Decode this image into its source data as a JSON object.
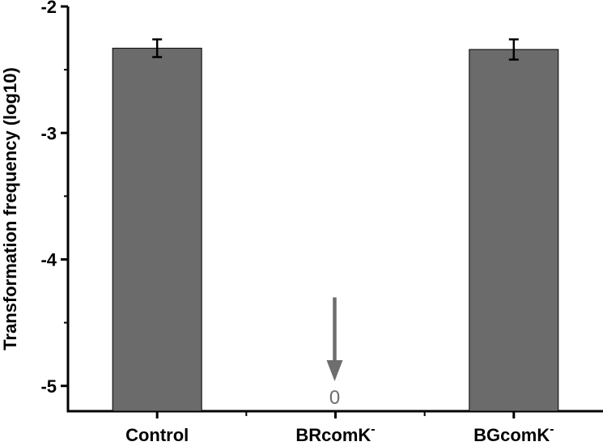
{
  "chart_data": {
    "type": "bar",
    "ylabel": "Transformation frequency (log10)",
    "categories": [
      {
        "name": "Control",
        "sup": ""
      },
      {
        "name": "BRcomK",
        "sup": "-"
      },
      {
        "name": "BGcomK",
        "sup": "-"
      }
    ],
    "values": [
      -2.33,
      null,
      -2.34
    ],
    "error": [
      0.07,
      null,
      0.08
    ],
    "ylim": [
      -5.2,
      -2.0
    ],
    "yticks": [
      -2,
      -3,
      -4,
      -5
    ],
    "ytick_labels": [
      "-2",
      "-3",
      "-4",
      "-5"
    ],
    "bar_color": "#6b6b6b",
    "annotation": {
      "category_index": 1,
      "text": "0",
      "from": -4.3,
      "to": -4.95,
      "color": "#6e6e6e"
    },
    "grid": false,
    "legend": "none"
  }
}
